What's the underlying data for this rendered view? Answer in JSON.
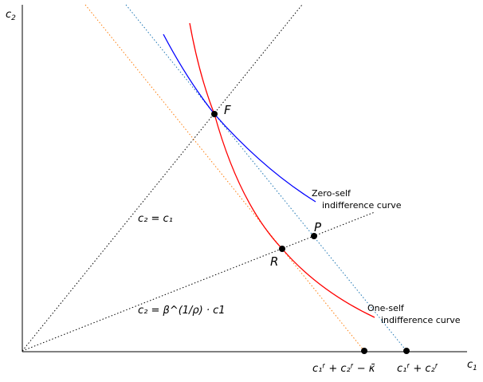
{
  "axes": {
    "xlabel_base": "c",
    "xlabel_sub": "1",
    "ylabel_base": "c",
    "ylabel_sub": "2"
  },
  "points": {
    "F": "F",
    "P": "P",
    "R": "R"
  },
  "lines": {
    "diagonal": {
      "label": "c₂ = c₁"
    },
    "ray": {
      "label": "c₂ = β^(1/ρ) · c1"
    }
  },
  "curves": {
    "zero_self": {
      "line1": "Zero-self",
      "line2": "indifference curve",
      "color": "#0000ff"
    },
    "one_self": {
      "line1": "One-self",
      "line2": "indifference curve",
      "color": "#ff0000"
    }
  },
  "ticks": {
    "left": "c₁ᶠ + c₂ᶠ − κ̄",
    "right": "c₁ᶠ + c₂ᶠ"
  },
  "colors": {
    "budget_blue": "#1f77b4",
    "budget_orange": "#ff7f0e"
  }
}
